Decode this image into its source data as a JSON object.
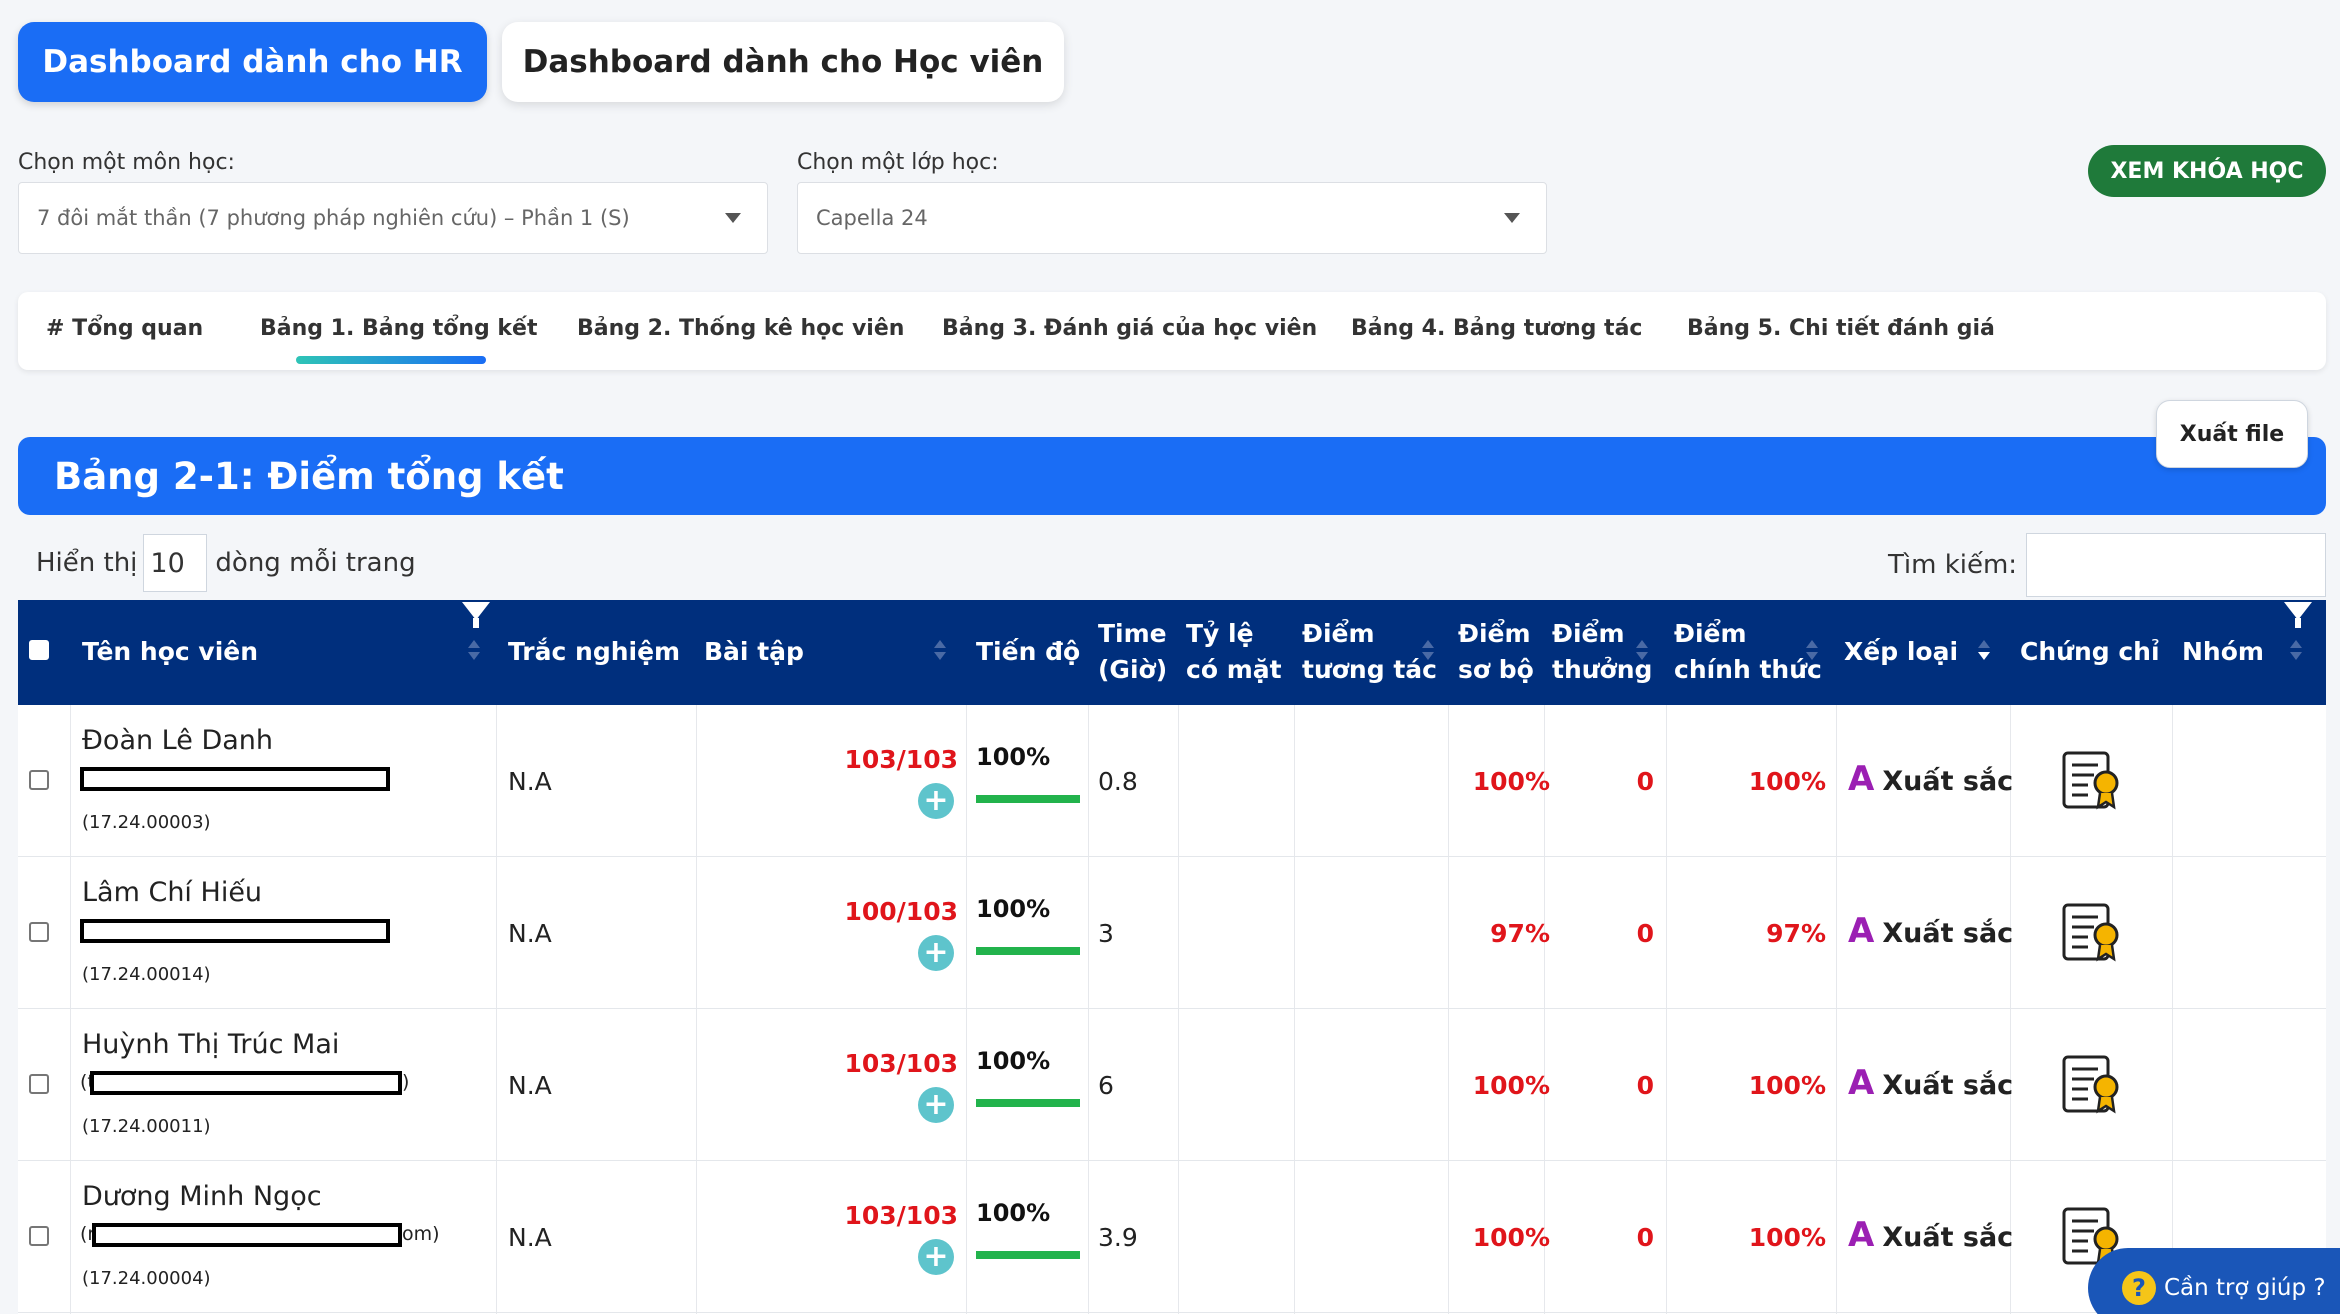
{
  "dashboard_tabs": {
    "hr": "Dashboard dành cho HR",
    "hocvien": "Dashboard dành cho Học viên"
  },
  "course_select": {
    "label": "Chọn một môn học:",
    "value": "7 đôi mắt thần (7 phương pháp nghiên cứu) – Phần 1 (S)"
  },
  "class_select": {
    "label": "Chọn một lớp học:",
    "value": "Capella 24"
  },
  "view_course_button": "XEM KHÓA HỌC",
  "tabs": [
    "# Tổng quan",
    "Bảng 1. Bảng tổng kết",
    "Bảng 2. Thống kê học viên",
    "Bảng 3. Đánh giá của học viên",
    "Bảng 4. Bảng tương tác",
    "Bảng 5. Chi tiết đánh giá"
  ],
  "active_tab": "Bảng 1. Bảng tổng kết",
  "export_button": "Xuất file",
  "panel_title": "Bảng 2-1: Điểm tổng kết",
  "pagination": {
    "show_prefix": "Hiển thị",
    "page_size": "10",
    "show_suffix": "dòng mỗi trang"
  },
  "search": {
    "label": "Tìm kiếm:"
  },
  "columns": {
    "name": "Tên học viên",
    "quiz": "Trắc nghiệm",
    "homework": "Bài tập",
    "progress": "Tiến độ",
    "time_1": "Time",
    "time_2": "(Giờ)",
    "attend_1": "Tỷ lệ",
    "attend_2": "có mặt",
    "interact_1": "Điểm",
    "interact_2": "tương tác",
    "prelim_1": "Điểm",
    "prelim_2": "sơ bộ",
    "bonus_1": "Điểm",
    "bonus_2": "thưởng",
    "official_1": "Điểm",
    "official_2": "chính thức",
    "rank": "Xếp loại",
    "certificate": "Chứng chỉ",
    "group": "Nhóm"
  },
  "rows": [
    {
      "name": "Đoàn Lê Danh",
      "email_prefix": "",
      "email_suffix": "",
      "code": "(17.24.00003)",
      "quiz": "N.A",
      "homework": "103/103",
      "progress": "100%",
      "progress_fraction": 1.0,
      "time": "0.8",
      "prelim": "100%",
      "bonus": "0",
      "official": "100%",
      "rank_letter": "A",
      "rank": "Xuất sắc"
    },
    {
      "name": "Lâm Chí Hiếu",
      "email_prefix": "",
      "email_suffix": "",
      "code": "(17.24.00014)",
      "quiz": "N.A",
      "homework": "100/103",
      "progress": "100%",
      "progress_fraction": 1.0,
      "time": "3",
      "prelim": "97%",
      "bonus": "0",
      "official": "97%",
      "rank_letter": "A",
      "rank": "Xuất sắc"
    },
    {
      "name": "Huỳnh Thị Trúc Mai",
      "email_prefix": "(t",
      "email_suffix": ")",
      "code": "(17.24.00011)",
      "quiz": "N.A",
      "homework": "103/103",
      "progress": "100%",
      "progress_fraction": 1.0,
      "time": "6",
      "prelim": "100%",
      "bonus": "0",
      "official": "100%",
      "rank_letter": "A",
      "rank": "Xuất sắc"
    },
    {
      "name": "Dương Minh Ngọc",
      "email_prefix": "(r",
      "email_suffix": "om)",
      "code": "(17.24.00004)",
      "quiz": "N.A",
      "homework": "103/103",
      "progress": "100%",
      "progress_fraction": 1.0,
      "time": "3.9",
      "prelim": "100%",
      "bonus": "0",
      "official": "100%",
      "rank_letter": "A",
      "rank": "Xuất sắc"
    }
  ],
  "help_button": "Cần trợ giúp ?",
  "colors": {
    "primary": "#1a6df5",
    "header": "#002f7d",
    "danger": "#e0151b",
    "success": "#22b34c",
    "rank": "#9b1fb3",
    "view_course": "#1f7a3a"
  }
}
